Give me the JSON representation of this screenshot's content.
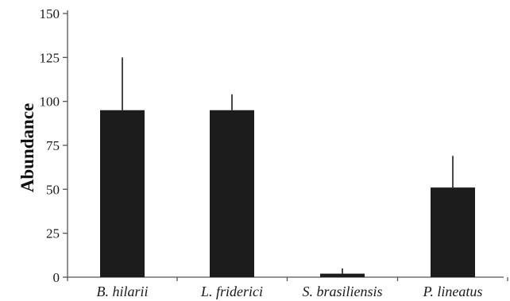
{
  "chart_data": {
    "type": "bar",
    "title": "",
    "xlabel": "",
    "ylabel": "Abundance",
    "ylim": [
      0,
      150
    ],
    "yticks": [
      0,
      25,
      50,
      75,
      100,
      125,
      150
    ],
    "categories": [
      "B. hilarii",
      "L. friderici",
      "S. brasiliensis",
      "P. lineatus"
    ],
    "values": [
      95,
      95,
      2,
      51
    ],
    "error_upper": [
      125,
      104,
      5,
      69
    ],
    "grid": false,
    "legend": "none",
    "colors": {
      "bar": "#1c1c1c",
      "axis": "#555555",
      "error": "#1c1c1c"
    }
  }
}
